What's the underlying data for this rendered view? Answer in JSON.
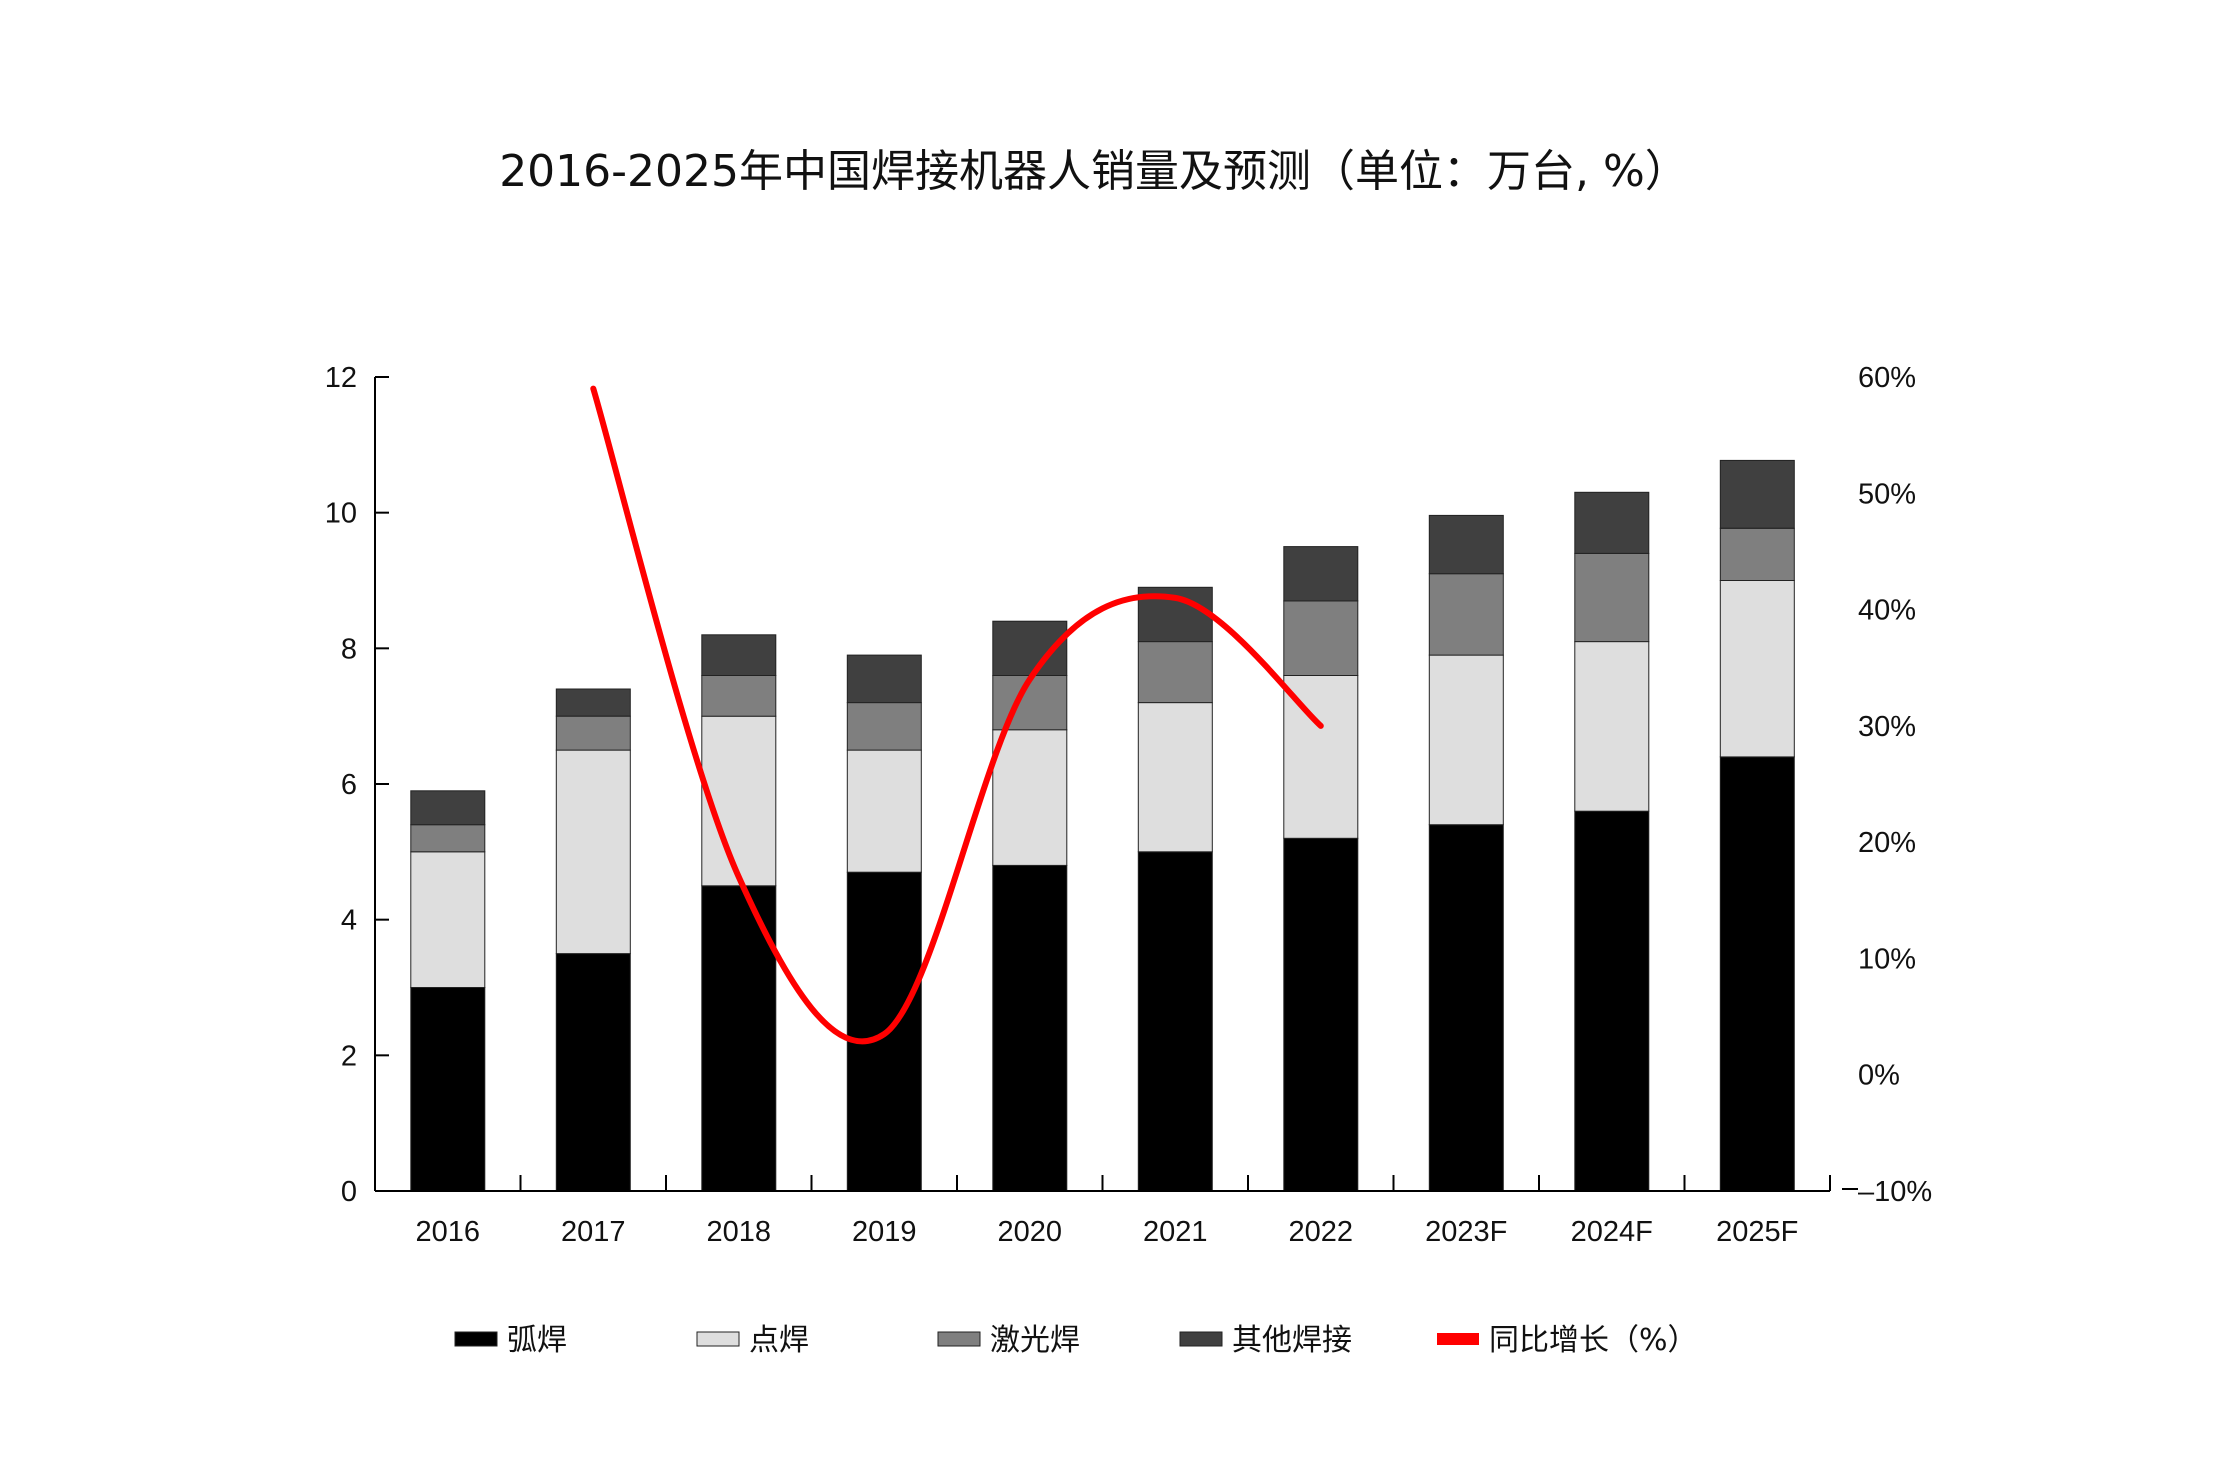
{
  "chart_data": {
    "type": "bar",
    "stacked": true,
    "title": "2016-2025年中国焊接机器人销量及预测（单位：万台, %）",
    "categories": [
      "2016",
      "2017",
      "2018",
      "2019",
      "2020",
      "2021",
      "2022",
      "2023F",
      "2024F",
      "2025F"
    ],
    "series": [
      {
        "name": "弧焊",
        "color": "#000000",
        "values": [
          3.0,
          3.5,
          4.5,
          4.7,
          4.8,
          5.0,
          5.2,
          5.4,
          5.6,
          6.4
        ]
      },
      {
        "name": "点焊",
        "color": "#dedede",
        "values": [
          2.0,
          3.0,
          2.5,
          1.8,
          2.0,
          2.2,
          2.4,
          2.5,
          2.5,
          2.6
        ]
      },
      {
        "name": "激光焊",
        "color": "#7f7f7f",
        "values": [
          0.4,
          0.5,
          0.6,
          0.7,
          0.8,
          0.9,
          1.1,
          1.2,
          1.3,
          0.77
        ]
      },
      {
        "name": "其他焊接",
        "color": "#404040",
        "values": [
          0.5,
          0.4,
          0.6,
          0.7,
          0.8,
          0.8,
          0.8,
          0.86,
          0.9,
          1.0
        ]
      }
    ],
    "line": {
      "name": "同比增长（%）",
      "color": "#ff0000",
      "categories": [
        "2017",
        "2018",
        "2019",
        "2020",
        "2021",
        "2022"
      ],
      "values": [
        59,
        17,
        3.5,
        34,
        41,
        30
      ]
    },
    "ylim": [
      0,
      12
    ],
    "yticks": [
      "0",
      "2",
      "4",
      "6",
      "8",
      "10",
      "12"
    ],
    "y2lim": [
      -10,
      60
    ],
    "y2ticks": [
      "-10%",
      "0%",
      "10%",
      "20%",
      "30%",
      "40%",
      "50%",
      "60%"
    ],
    "legend_position": "bottom",
    "grid": false
  }
}
